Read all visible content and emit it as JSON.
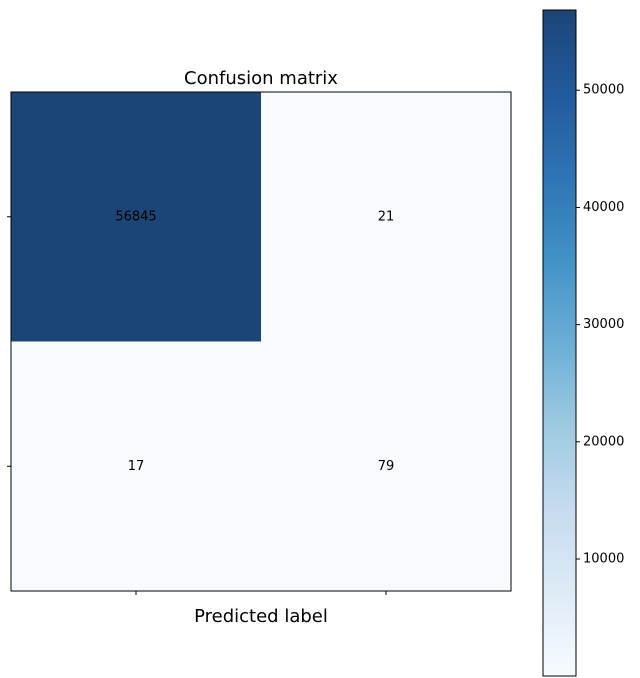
{
  "chart_data": {
    "type": "heatmap",
    "title": "Confusion matrix",
    "x_label": "Predicted label",
    "values": [
      [
        56845,
        21
      ],
      [
        17,
        79
      ]
    ],
    "clim": [
      17,
      56845
    ],
    "colorbar_ticks": [
      10000,
      20000,
      30000,
      40000,
      50000
    ],
    "colormap": [
      "#f7fbff",
      "#deebf7",
      "#c6dbef",
      "#9ecae1",
      "#6baed6",
      "#4292c6",
      "#2e74b4",
      "#225a9c",
      "#1c4577"
    ]
  }
}
